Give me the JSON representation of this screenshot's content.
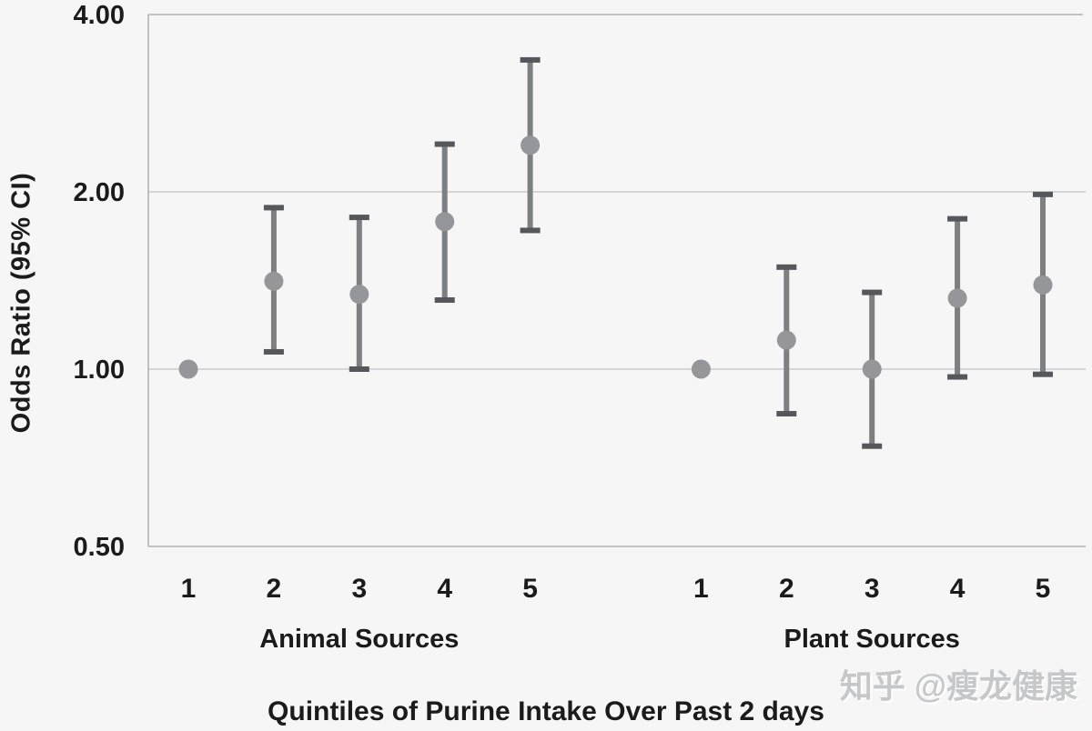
{
  "watermark": {
    "text": "知乎 @瘦龙健康"
  },
  "chart_data": {
    "type": "scatter",
    "subtype": "dot-with-95ci-error-bars",
    "title": "",
    "ylabel": "Odds Ratio (95% CI)",
    "xlabel": "Quintiles of Purine Intake Over Past 2 days",
    "y_scale": "log",
    "ylim": [
      0.5,
      4.0
    ],
    "grid": "horizontal",
    "legend": "none",
    "y_ticks": [
      {
        "value": 4.0,
        "label": "4.00"
      },
      {
        "value": 2.0,
        "label": "2.00"
      },
      {
        "value": 1.0,
        "label": "1.00"
      },
      {
        "value": 0.5,
        "label": "0.50"
      }
    ],
    "groups": [
      {
        "label": "Animal Sources",
        "points": [
          {
            "quintile": "1",
            "or": 1.0,
            "ci_low": null,
            "ci_high": null
          },
          {
            "quintile": "2",
            "or": 1.41,
            "ci_low": 1.07,
            "ci_high": 1.88
          },
          {
            "quintile": "3",
            "or": 1.34,
            "ci_low": 1.0,
            "ci_high": 1.81
          },
          {
            "quintile": "4",
            "or": 1.78,
            "ci_low": 1.31,
            "ci_high": 2.41
          },
          {
            "quintile": "5",
            "or": 2.4,
            "ci_low": 1.72,
            "ci_high": 3.35
          }
        ]
      },
      {
        "label": "Plant Sources",
        "points": [
          {
            "quintile": "1",
            "or": 1.0,
            "ci_low": null,
            "ci_high": null
          },
          {
            "quintile": "2",
            "or": 1.12,
            "ci_low": 0.84,
            "ci_high": 1.49
          },
          {
            "quintile": "3",
            "or": 1.0,
            "ci_low": 0.74,
            "ci_high": 1.35
          },
          {
            "quintile": "4",
            "or": 1.32,
            "ci_low": 0.97,
            "ci_high": 1.8
          },
          {
            "quintile": "5",
            "or": 1.39,
            "ci_low": 0.98,
            "ci_high": 1.98
          }
        ]
      }
    ],
    "colors": {
      "dot": "#95969a",
      "error_bar": "#7e7f82",
      "cap": "#56575a",
      "grid": "#c9cacb",
      "axis": "#b0b2b4",
      "text": "#1b1b1b"
    }
  }
}
